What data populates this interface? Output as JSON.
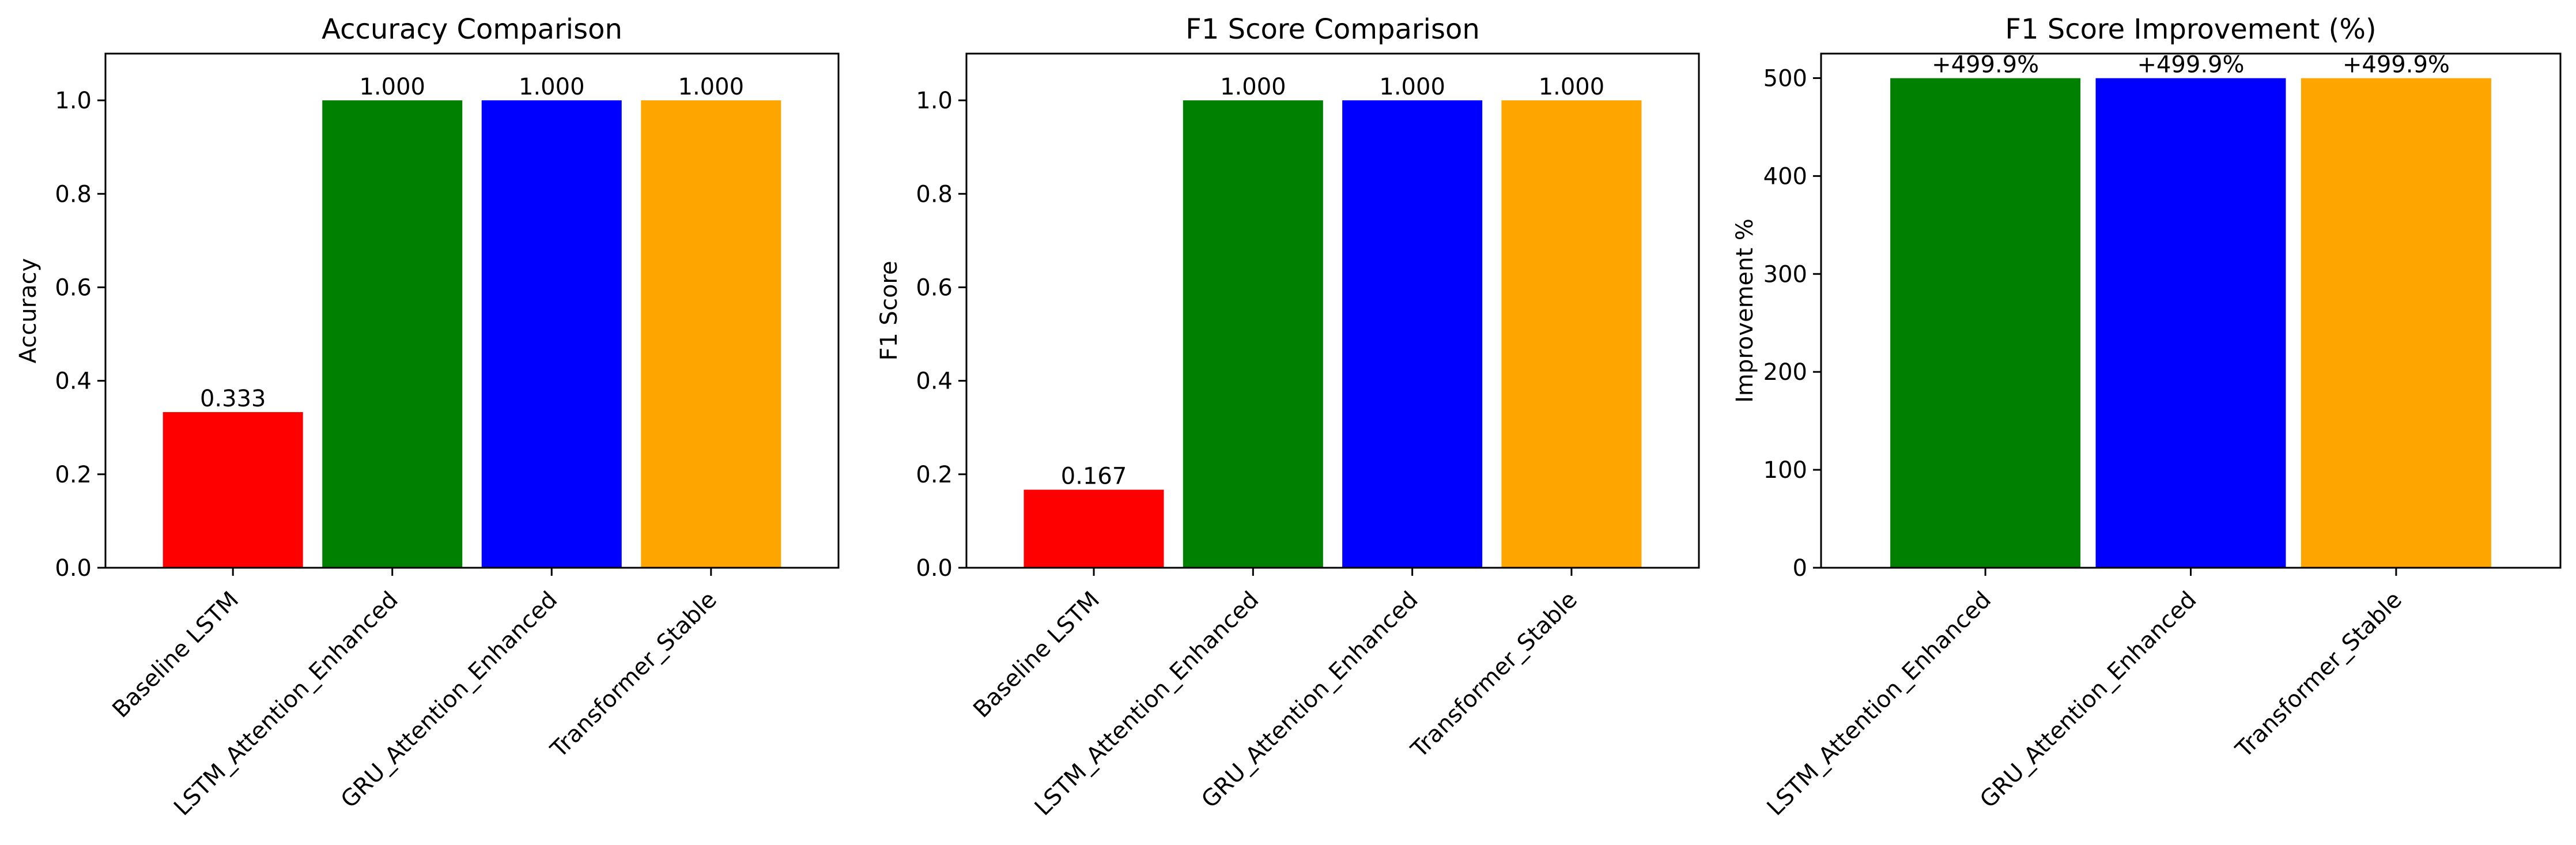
{
  "chart_data": [
    {
      "type": "bar",
      "title": "Accuracy Comparison",
      "xlabel": "",
      "ylabel": "Accuracy",
      "categories": [
        "Baseline LSTM",
        "LSTM_Attention_Enhanced",
        "GRU_Attention_Enhanced",
        "Transformer_Stable"
      ],
      "values": [
        0.333,
        1.0,
        1.0,
        1.0
      ],
      "value_labels": [
        "0.333",
        "1.000",
        "1.000",
        "1.000"
      ],
      "colors": [
        "#ff0000",
        "#008000",
        "#0000ff",
        "#ffa500"
      ],
      "ylim": [
        0,
        1.1
      ],
      "yticks": [
        0.0,
        0.2,
        0.4,
        0.6,
        0.8,
        1.0
      ],
      "ytick_labels": [
        "0.0",
        "0.2",
        "0.4",
        "0.6",
        "0.8",
        "1.0"
      ],
      "grid": false,
      "legend": "none"
    },
    {
      "type": "bar",
      "title": "F1 Score Comparison",
      "xlabel": "",
      "ylabel": "F1 Score",
      "categories": [
        "Baseline LSTM",
        "LSTM_Attention_Enhanced",
        "GRU_Attention_Enhanced",
        "Transformer_Stable"
      ],
      "values": [
        0.167,
        1.0,
        1.0,
        1.0
      ],
      "value_labels": [
        "0.167",
        "1.000",
        "1.000",
        "1.000"
      ],
      "colors": [
        "#ff0000",
        "#008000",
        "#0000ff",
        "#ffa500"
      ],
      "ylim": [
        0,
        1.1
      ],
      "yticks": [
        0.0,
        0.2,
        0.4,
        0.6,
        0.8,
        1.0
      ],
      "ytick_labels": [
        "0.0",
        "0.2",
        "0.4",
        "0.6",
        "0.8",
        "1.0"
      ],
      "grid": false,
      "legend": "none"
    },
    {
      "type": "bar",
      "title": "F1 Score Improvement (%)",
      "xlabel": "",
      "ylabel": "Improvement %",
      "categories": [
        "LSTM_Attention_Enhanced",
        "GRU_Attention_Enhanced",
        "Transformer_Stable"
      ],
      "values": [
        499.9,
        499.9,
        499.9
      ],
      "value_labels": [
        "+499.9%",
        "+499.9%",
        "+499.9%"
      ],
      "colors": [
        "#008000",
        "#0000ff",
        "#ffa500"
      ],
      "ylim": [
        0,
        525
      ],
      "yticks": [
        0,
        100,
        200,
        300,
        400,
        500
      ],
      "ytick_labels": [
        "0",
        "100",
        "200",
        "300",
        "400",
        "500"
      ],
      "grid": false,
      "legend": "none"
    }
  ]
}
